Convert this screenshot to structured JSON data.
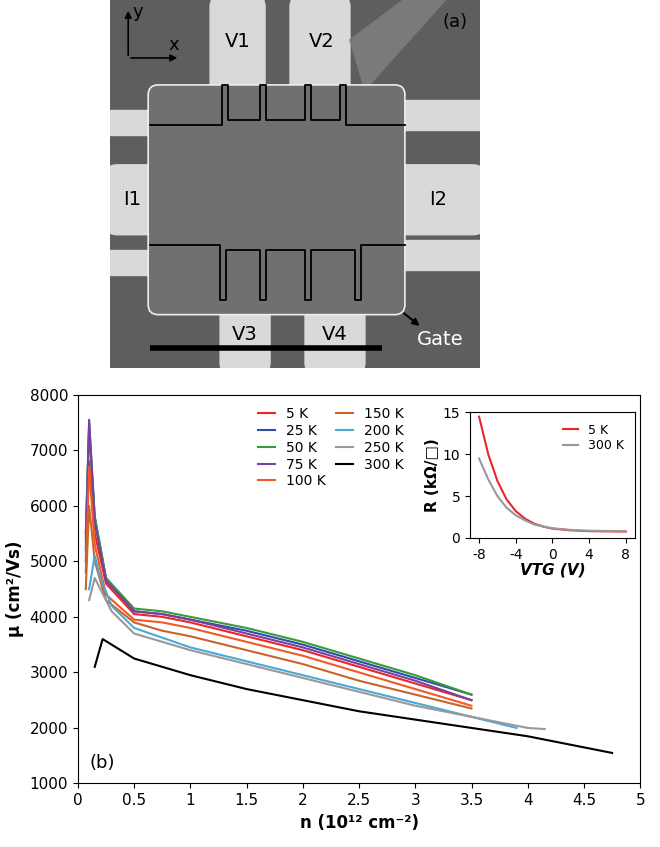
{
  "diagram": {
    "panel_label": "(a)",
    "axis_labels": [
      "x",
      "y"
    ],
    "contacts": [
      "V1",
      "V2",
      "I1",
      "I2",
      "V3",
      "V4",
      "Gate"
    ]
  },
  "chart_data": [
    {
      "type": "line",
      "xlabel": "n (10¹² cm⁻²)",
      "ylabel": "μ (cm²/Vs)",
      "annotations": [
        "(b)"
      ],
      "xlim": [
        0,
        5
      ],
      "xticks": [
        0,
        0.5,
        1,
        1.5,
        2,
        2.5,
        3,
        3.5,
        4,
        4.5,
        5
      ],
      "ylim": [
        1000,
        8000
      ],
      "yticks": [
        1000,
        2000,
        3000,
        4000,
        5000,
        6000,
        7000,
        8000
      ],
      "legend": "upper center",
      "series": [
        {
          "name": "5 K",
          "color": "#e8262b",
          "x": [
            0.07,
            0.1,
            0.15,
            0.25,
            0.5,
            0.75,
            1,
            1.5,
            2,
            2.5,
            3,
            3.5
          ],
          "values": [
            5000,
            6800,
            5500,
            4600,
            4050,
            4000,
            3900,
            3650,
            3400,
            3100,
            2800,
            2500
          ]
        },
        {
          "name": "25 K",
          "color": "#2b4ea8",
          "x": [
            0.07,
            0.1,
            0.15,
            0.25,
            0.5,
            0.75,
            1,
            1.5,
            2,
            2.5,
            3,
            3.5
          ],
          "values": [
            5500,
            7500,
            5800,
            4700,
            4100,
            4050,
            3950,
            3750,
            3500,
            3200,
            2900,
            2600
          ]
        },
        {
          "name": "50 K",
          "color": "#3a9a3a",
          "x": [
            0.07,
            0.1,
            0.15,
            0.25,
            0.5,
            0.75,
            1,
            1.5,
            2,
            2.5,
            3,
            3.5
          ],
          "values": [
            5400,
            7400,
            5800,
            4700,
            4150,
            4100,
            4000,
            3800,
            3550,
            3250,
            2950,
            2600
          ]
        },
        {
          "name": "75 K",
          "color": "#7b3f9e",
          "x": [
            0.07,
            0.1,
            0.15,
            0.25,
            0.5,
            0.75,
            1,
            1.5,
            2,
            2.5,
            3,
            3.5
          ],
          "values": [
            5200,
            7550,
            5700,
            4650,
            4100,
            4050,
            3950,
            3700,
            3450,
            3150,
            2850,
            2500
          ]
        },
        {
          "name": "100 K",
          "color": "#f15a24",
          "x": [
            0.07,
            0.1,
            0.15,
            0.25,
            0.5,
            0.75,
            1,
            1.5,
            2,
            2.5,
            3,
            3.5
          ],
          "values": [
            4800,
            6700,
            5300,
            4400,
            3950,
            3900,
            3800,
            3550,
            3300,
            3000,
            2700,
            2400
          ]
        },
        {
          "name": "150 K",
          "color": "#c8642a",
          "x": [
            0.07,
            0.1,
            0.15,
            0.25,
            0.5,
            0.75,
            1,
            1.5,
            2,
            2.5,
            3,
            3.5
          ],
          "values": [
            4500,
            6000,
            5000,
            4300,
            3900,
            3750,
            3650,
            3400,
            3150,
            2850,
            2600,
            2350
          ]
        },
        {
          "name": "200 K",
          "color": "#4aa8d8",
          "x": [
            0.1,
            0.15,
            0.2,
            0.3,
            0.5,
            1,
            1.5,
            2,
            2.5,
            3,
            3.5,
            3.9
          ],
          "values": [
            4500,
            5100,
            4700,
            4200,
            3800,
            3450,
            3200,
            2950,
            2700,
            2450,
            2200,
            2000
          ]
        },
        {
          "name": "250 K",
          "color": "#999999",
          "x": [
            0.1,
            0.15,
            0.2,
            0.3,
            0.5,
            1,
            1.5,
            2,
            2.5,
            3,
            3.5,
            4,
            4.15
          ],
          "values": [
            4300,
            4700,
            4500,
            4100,
            3700,
            3400,
            3150,
            2900,
            2650,
            2400,
            2200,
            2000,
            1980
          ]
        },
        {
          "name": "300 K",
          "color": "#000000",
          "x": [
            0.15,
            0.22,
            0.3,
            0.5,
            1,
            1.5,
            2,
            2.5,
            3,
            3.5,
            4,
            4.5,
            4.75
          ],
          "values": [
            3100,
            3600,
            3500,
            3250,
            2950,
            2700,
            2500,
            2300,
            2150,
            2000,
            1850,
            1650,
            1550
          ]
        }
      ]
    },
    {
      "type": "line",
      "xlabel": "VTG (V)",
      "ylabel": "R (kΩ/□)",
      "xlim": [
        -9,
        9
      ],
      "xticks": [
        -8,
        -4,
        0,
        4,
        8
      ],
      "ylim": [
        0,
        15
      ],
      "yticks": [
        0,
        5,
        10,
        15
      ],
      "legend": "upper right",
      "series": [
        {
          "name": "5 K",
          "color": "#e8262b",
          "x": [
            -8,
            -7,
            -6,
            -5,
            -4,
            -3,
            -2,
            -1,
            0,
            2,
            4,
            8
          ],
          "values": [
            14.5,
            10,
            6.8,
            4.6,
            3.2,
            2.3,
            1.7,
            1.35,
            1.1,
            0.9,
            0.8,
            0.75
          ]
        },
        {
          "name": "300 K",
          "color": "#999999",
          "x": [
            -8,
            -7,
            -6,
            -5,
            -4,
            -3,
            -2,
            -1,
            0,
            2,
            4,
            8
          ],
          "values": [
            9.5,
            7,
            5,
            3.6,
            2.7,
            2.1,
            1.6,
            1.35,
            1.15,
            0.95,
            0.85,
            0.8
          ]
        }
      ]
    }
  ]
}
